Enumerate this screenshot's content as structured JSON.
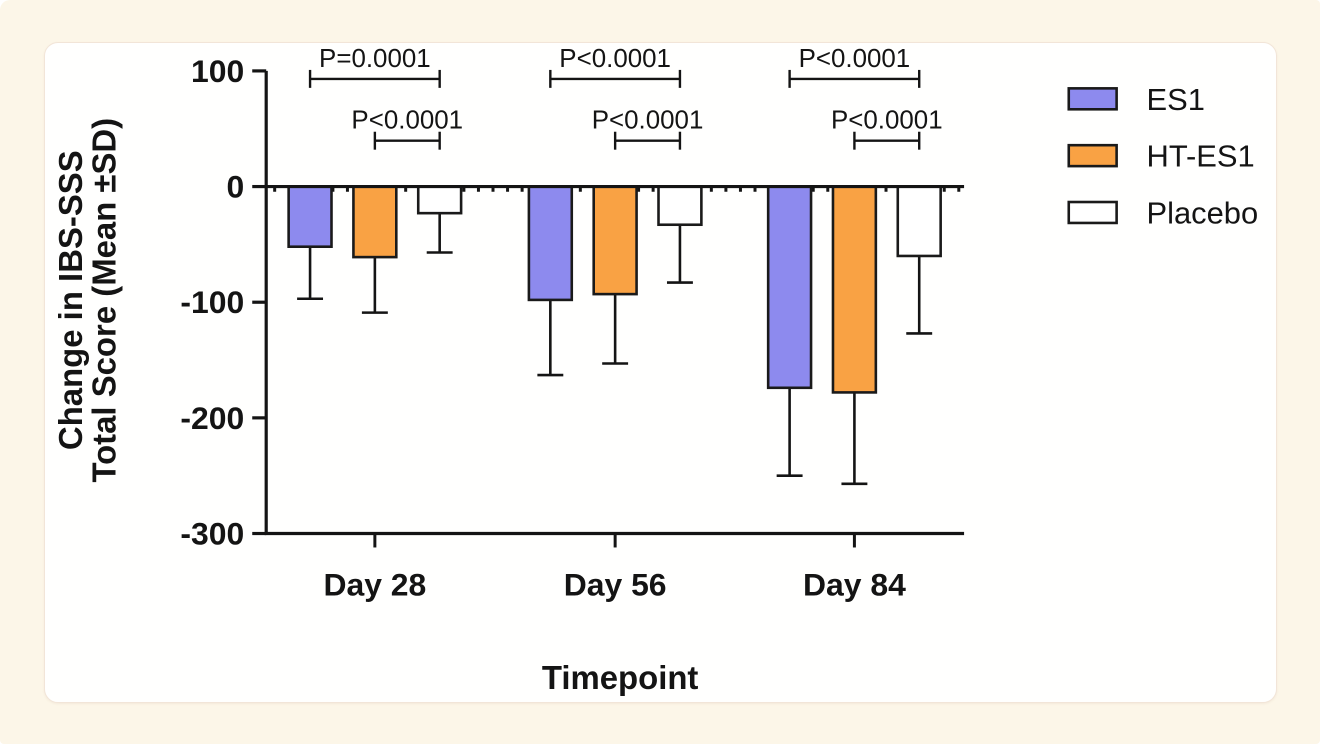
{
  "chart_data": {
    "type": "bar",
    "title": "",
    "xlabel": "Timepoint",
    "ylabel": "Change in IBS-SSS Total Score (Mean ±SD)",
    "ylabel_lines": [
      "Change in IBS-SSS",
      "Total Score (Mean ±SD)"
    ],
    "categories": [
      "Day 28",
      "Day 56",
      "Day 84"
    ],
    "series": [
      {
        "name": "ES1",
        "color": "#8D8AEE",
        "values": [
          -52,
          -98,
          -174
        ],
        "sd": [
          45,
          65,
          76
        ]
      },
      {
        "name": "HT-ES1",
        "color": "#F9A244",
        "values": [
          -61,
          -93,
          -178
        ],
        "sd": [
          48,
          60,
          79
        ]
      },
      {
        "name": "Placebo",
        "color": "#FFFFFF",
        "values": [
          -23,
          -33,
          -60
        ],
        "sd": [
          34,
          50,
          67
        ]
      }
    ],
    "error_bars": "SD, downward only",
    "ylim": [
      -300,
      100
    ],
    "yticks": [
      100,
      0,
      -100,
      -200,
      -300
    ],
    "ytick_labels": [
      "100",
      "0",
      "-100",
      "-200",
      "-300"
    ],
    "grid": false,
    "legend_position": "right",
    "annotations": [
      {
        "group": 0,
        "from": 0,
        "to": 2,
        "level": "top",
        "label": "P=0.0001"
      },
      {
        "group": 0,
        "from": 1,
        "to": 2,
        "level": "lower",
        "label": "P<0.0001"
      },
      {
        "group": 1,
        "from": 0,
        "to": 2,
        "level": "top",
        "label": "P<0.0001"
      },
      {
        "group": 1,
        "from": 1,
        "to": 2,
        "level": "lower",
        "label": "P<0.0001"
      },
      {
        "group": 2,
        "from": 0,
        "to": 2,
        "level": "top",
        "label": "P<0.0001"
      },
      {
        "group": 2,
        "from": 1,
        "to": 2,
        "level": "lower",
        "label": "P<0.0001"
      }
    ]
  },
  "colors": {
    "background": "#FCF6E8",
    "panel": "#FFFFFE",
    "panel_border": "#F2E5D8",
    "axis": "#141414",
    "bar_border": "#1A1A1A"
  }
}
